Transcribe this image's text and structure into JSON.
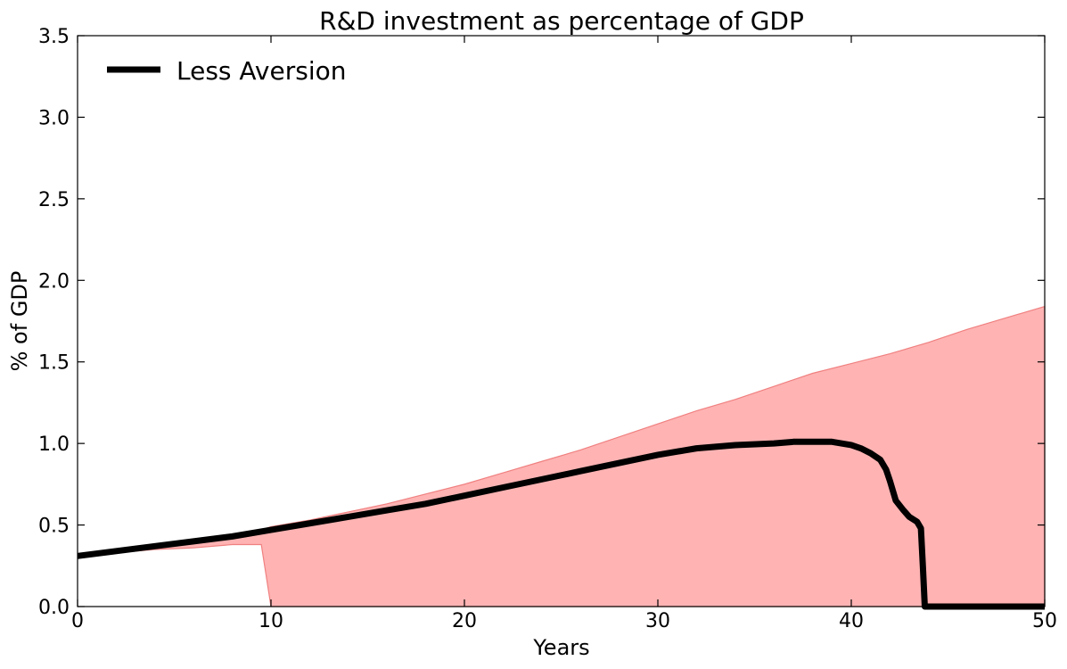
{
  "chart_data": {
    "type": "area",
    "title": "R&D investment as percentage of  GDP",
    "xlabel": "Years",
    "ylabel": "% of GDP",
    "xlim": [
      0,
      50
    ],
    "ylim": [
      0,
      3.5
    ],
    "xticks": [
      0,
      10,
      20,
      30,
      40,
      50
    ],
    "yticks": [
      0.0,
      0.5,
      1.0,
      1.5,
      2.0,
      2.5,
      3.0,
      3.5
    ],
    "xtick_labels": [
      "0",
      "10",
      "20",
      "30",
      "40",
      "50"
    ],
    "ytick_labels": [
      "0.0",
      "0.5",
      "1.0",
      "1.5",
      "2.0",
      "2.5",
      "3.0",
      "3.5"
    ],
    "grid": false,
    "legend": {
      "position": "top-left",
      "entries": [
        "Less Aversion"
      ]
    },
    "band": {
      "color": "#ffb3b3",
      "edge_color": "#f08080",
      "x": [
        0,
        2,
        4,
        6,
        8,
        9.5,
        10,
        12,
        14,
        16,
        18,
        20,
        22,
        24,
        26,
        28,
        30,
        32,
        34,
        36,
        38,
        40,
        42,
        44,
        46,
        48,
        50
      ],
      "upper": [
        0.31,
        0.34,
        0.37,
        0.4,
        0.44,
        0.47,
        0.49,
        0.53,
        0.58,
        0.63,
        0.69,
        0.75,
        0.82,
        0.89,
        0.96,
        1.04,
        1.12,
        1.2,
        1.27,
        1.35,
        1.43,
        1.49,
        1.55,
        1.62,
        1.7,
        1.77,
        1.84
      ],
      "lower": [
        0.31,
        0.33,
        0.35,
        0.36,
        0.38,
        0.38,
        0.0,
        0.0,
        0.0,
        0.0,
        0.0,
        0.0,
        0.0,
        0.0,
        0.0,
        0.0,
        0.0,
        0.0,
        0.0,
        0.0,
        0.0,
        0.0,
        0.0,
        0.0,
        0.0,
        0.0,
        0.0
      ]
    },
    "series": [
      {
        "name": "Less Aversion",
        "color": "#000000",
        "x": [
          0,
          2,
          4,
          6,
          8,
          10,
          12,
          14,
          16,
          18,
          20,
          22,
          24,
          26,
          28,
          30,
          32,
          34,
          36,
          37,
          38,
          39,
          40,
          40.5,
          41,
          41.5,
          41.8,
          42,
          42.3,
          42.7,
          43,
          43.4,
          43.6,
          43.7,
          43.8,
          44,
          46,
          48,
          50
        ],
        "values": [
          0.31,
          0.34,
          0.37,
          0.4,
          0.43,
          0.47,
          0.51,
          0.55,
          0.59,
          0.63,
          0.68,
          0.73,
          0.78,
          0.83,
          0.88,
          0.93,
          0.97,
          0.99,
          1.0,
          1.01,
          1.01,
          1.01,
          0.99,
          0.97,
          0.94,
          0.9,
          0.84,
          0.77,
          0.65,
          0.59,
          0.55,
          0.52,
          0.48,
          0.25,
          0.0,
          0.0,
          0.0,
          0.0,
          0.0
        ]
      }
    ]
  }
}
